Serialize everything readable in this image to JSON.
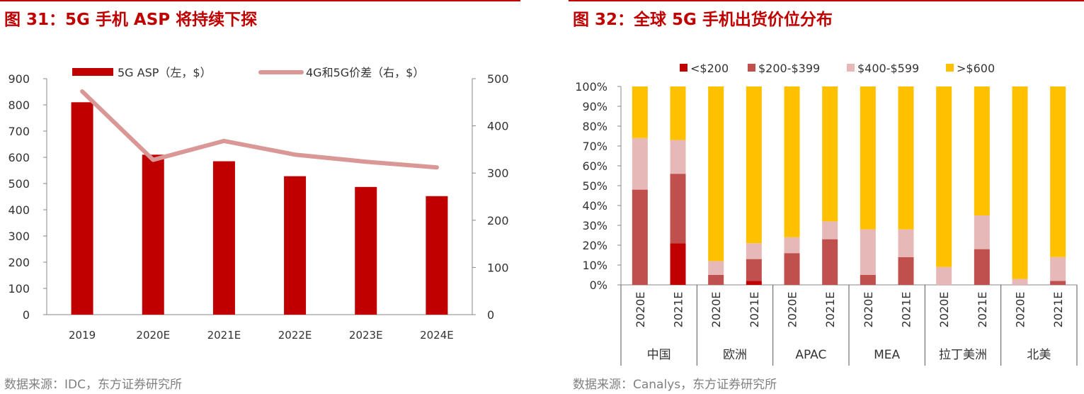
{
  "left": {
    "title": "图 31：5G 手机 ASP 将持续下探",
    "source": "数据来源：IDC，东方证券研究所"
  },
  "right": {
    "title": "图 32：全球 5G 手机出货价位分布",
    "source": "数据来源：Canalys，东方证券研究所"
  },
  "chart_data": [
    {
      "type": "bar",
      "categories": [
        "2019",
        "2020E",
        "2021E",
        "2022E",
        "2023E",
        "2024E"
      ],
      "series": [
        {
          "name": "5G ASP（左，$）",
          "kind": "bar",
          "axis": "left",
          "color": "#c00000",
          "values": [
            810,
            610,
            585,
            528,
            487,
            452
          ]
        },
        {
          "name": "4G和5G价差（右，$）",
          "kind": "line",
          "axis": "right",
          "color": "#d99795",
          "values": [
            473,
            328,
            368,
            339,
            324,
            312
          ]
        }
      ],
      "yticks_left": [
        "0",
        "100",
        "200",
        "300",
        "400",
        "500",
        "600",
        "700",
        "800",
        "900"
      ],
      "yticks_right": [
        "0",
        "100",
        "200",
        "300",
        "400",
        "500"
      ],
      "ylim_left": [
        0,
        900
      ],
      "ylim_right": [
        0,
        500
      ],
      "legend_position": "top"
    },
    {
      "type": "bar",
      "stacked": true,
      "percent": true,
      "categories": [
        "2020E",
        "2021E",
        "2020E",
        "2021E",
        "2020E",
        "2021E",
        "2020E",
        "2021E",
        "2020E",
        "2021E",
        "2020E",
        "2021E"
      ],
      "groups": [
        "中国",
        "欧洲",
        "APAC",
        "MEA",
        "拉丁美洲",
        "北美"
      ],
      "series": [
        {
          "name": "<$200",
          "color": "#c00000",
          "values": [
            0,
            21,
            0,
            2,
            0,
            0,
            0,
            0,
            0,
            0,
            0,
            0
          ]
        },
        {
          "name": "$200-$399",
          "color": "#c0504d",
          "values": [
            48,
            35,
            5,
            11,
            16,
            23,
            5,
            14,
            0,
            18,
            0,
            2
          ]
        },
        {
          "name": "$400-$599",
          "color": "#e6b9b8",
          "values": [
            26,
            17,
            7,
            8,
            8,
            9,
            23,
            14,
            9,
            17,
            3,
            12
          ]
        },
        {
          "name": ">$600",
          "color": "#ffc000",
          "values": [
            26,
            27,
            88,
            79,
            76,
            68,
            72,
            72,
            91,
            65,
            97,
            86
          ]
        }
      ],
      "yticks": [
        "0%",
        "10%",
        "20%",
        "30%",
        "40%",
        "50%",
        "60%",
        "70%",
        "80%",
        "90%",
        "100%"
      ],
      "ylim": [
        0,
        100
      ],
      "legend_position": "top"
    }
  ]
}
